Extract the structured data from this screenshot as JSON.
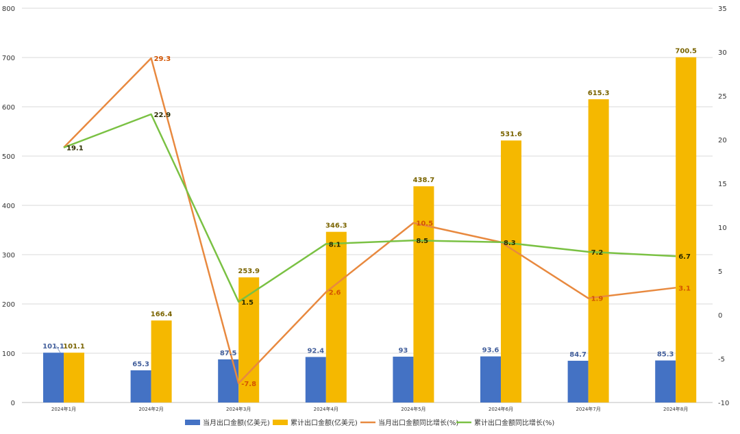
{
  "chart_data": {
    "type": "bar",
    "title": "",
    "categories": [
      "2024年1月",
      "2024年2月",
      "2024年3月",
      "2024年4月",
      "2024年5月",
      "2024年6月",
      "2024年7月",
      "2024年8月"
    ],
    "y_left": {
      "min": 0,
      "max": 800,
      "ticks": [
        "0",
        "100",
        "200",
        "300",
        "400",
        "500",
        "600",
        "700",
        "800"
      ]
    },
    "y_right": {
      "min": -10,
      "max": 35,
      "ticks": [
        "-10",
        "-5",
        "0",
        "5",
        "10",
        "15",
        "20",
        "25",
        "30",
        "35"
      ]
    },
    "series": [
      {
        "name": "当月出口金额(亿美元)",
        "kind": "bar",
        "axis": "left",
        "color": "#4472c4",
        "label_color": "#44609c",
        "values": [
          101.1,
          65.3,
          87.5,
          92.4,
          93,
          93.6,
          84.7,
          85.3
        ],
        "labels": [
          "101.1",
          "65.3",
          "87.5",
          "92.4",
          "93",
          "93.6",
          "84.7",
          "85.3"
        ]
      },
      {
        "name": "累计出口金额(亿美元)",
        "kind": "bar",
        "axis": "left",
        "color": "#f5b800",
        "label_color": "#7a6400",
        "values": [
          101.1,
          166.4,
          253.9,
          346.3,
          438.7,
          531.6,
          615.3,
          700.5
        ],
        "labels": [
          "101.1",
          "166.4",
          "253.9",
          "346.3",
          "438.7",
          "531.6",
          "615.3",
          "700.5"
        ]
      },
      {
        "name": "当月出口金额同比增长(%)",
        "kind": "line",
        "axis": "right",
        "color": "#e8893f",
        "label_color": "#d35400",
        "values": [
          19.1,
          29.3,
          -7.8,
          2.6,
          10.5,
          8.3,
          1.9,
          3.1
        ],
        "labels": [
          "",
          "29.3",
          "-7.8",
          "2.6",
          "10.5",
          "",
          "1.9",
          "3.1"
        ]
      },
      {
        "name": "累计出口金额同比增长(%)",
        "kind": "line",
        "axis": "right",
        "color": "#7ac143",
        "label_color": "#2b2b00",
        "values": [
          19.1,
          22.9,
          1.5,
          8.1,
          8.5,
          8.3,
          7.2,
          6.7
        ],
        "labels": [
          "19.1",
          "22.9",
          "1.5",
          "8.1",
          "8.5",
          "8.3",
          "7.2",
          "6.7"
        ]
      }
    ],
    "legend_position": "bottom",
    "grid": true
  }
}
